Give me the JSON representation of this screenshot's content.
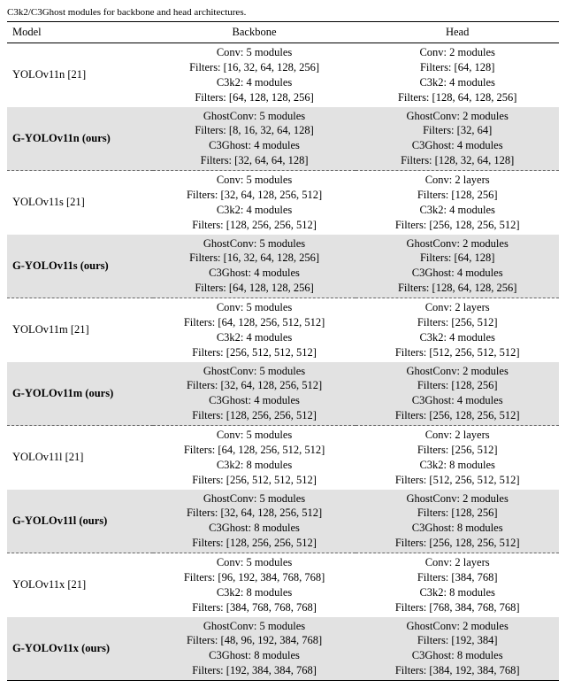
{
  "caption": "C3k2/C3Ghost modules for backbone and head architectures.",
  "headers": {
    "c0": "Model",
    "c1": "Backbone",
    "c2": "Head"
  },
  "rows": [
    {
      "model": "YOLOv11n [21]",
      "bold": false,
      "shaded": false,
      "sep": false,
      "backbone": [
        "Conv: 5 modules",
        "Filters: [16, 32, 64, 128, 256]",
        "C3k2: 4 modules",
        "Filters: [64, 128, 128, 256]"
      ],
      "head": [
        "Conv: 2 modules",
        "Filters: [64, 128]",
        "C3k2: 4 modules",
        "Filters: [128, 64, 128, 256]"
      ]
    },
    {
      "model": "G-YOLOv11n (ours)",
      "bold": true,
      "shaded": true,
      "sep": false,
      "backbone": [
        "GhostConv: 5 modules",
        "Filters: [8, 16, 32, 64, 128]",
        "C3Ghost: 4 modules",
        "Filters: [32, 64, 64, 128]"
      ],
      "head": [
        "GhostConv: 2 modules",
        "Filters: [32, 64]",
        "C3Ghost: 4 modules",
        "Filters: [128, 32, 64, 128]"
      ]
    },
    {
      "model": "YOLOv11s [21]",
      "bold": false,
      "shaded": false,
      "sep": true,
      "backbone": [
        "Conv: 5 modules",
        "Filters: [32, 64, 128, 256, 512]",
        "C3k2: 4 modules",
        "Filters: [128, 256, 256, 512]"
      ],
      "head": [
        "Conv: 2 layers",
        "Filters: [128, 256]",
        "C3k2: 4 modules",
        "Filters: [256, 128, 256, 512]"
      ]
    },
    {
      "model": "G-YOLOv11s (ours)",
      "bold": true,
      "shaded": true,
      "sep": false,
      "backbone": [
        "GhostConv: 5 modules",
        "Filters: [16, 32, 64, 128, 256]",
        "C3Ghost: 4 modules",
        "Filters: [64, 128, 128, 256]"
      ],
      "head": [
        "GhostConv: 2 modules",
        "Filters: [64, 128]",
        "C3Ghost: 4 modules",
        "Filters: [128, 64, 128, 256]"
      ]
    },
    {
      "model": "YOLOv11m [21]",
      "bold": false,
      "shaded": false,
      "sep": true,
      "backbone": [
        "Conv: 5 modules",
        "Filters: [64, 128, 256, 512, 512]",
        "C3k2: 4 modules",
        "Filters: [256, 512, 512, 512]"
      ],
      "head": [
        "Conv: 2 layers",
        "Filters: [256, 512]",
        "C3k2: 4 modules",
        "Filters: [512, 256, 512, 512]"
      ]
    },
    {
      "model": "G-YOLOv11m (ours)",
      "bold": true,
      "shaded": true,
      "sep": false,
      "backbone": [
        "GhostConv: 5 modules",
        "Filters: [32, 64, 128, 256, 512]",
        "C3Ghost: 4 modules",
        "Filters: [128, 256, 256, 512]"
      ],
      "head": [
        "GhostConv: 2 modules",
        "Filters: [128, 256]",
        "C3Ghost: 4 modules",
        "Filters: [256, 128, 256, 512]"
      ]
    },
    {
      "model": "YOLOv11l [21]",
      "bold": false,
      "shaded": false,
      "sep": true,
      "backbone": [
        "Conv: 5 modules",
        "Filters: [64, 128, 256, 512, 512]",
        "C3k2: 8 modules",
        "Filters: [256, 512, 512, 512]"
      ],
      "head": [
        "Conv: 2 layers",
        "Filters: [256, 512]",
        "C3k2: 8 modules",
        "Filters: [512, 256, 512, 512]"
      ]
    },
    {
      "model": "G-YOLOv11l (ours)",
      "bold": true,
      "shaded": true,
      "sep": false,
      "backbone": [
        "GhostConv: 5 modules",
        "Filters: [32, 64, 128, 256, 512]",
        "C3Ghost: 8 modules",
        "Filters: [128, 256, 256, 512]"
      ],
      "head": [
        "GhostConv: 2 modules",
        "Filters: [128, 256]",
        "C3Ghost: 8 modules",
        "Filters: [256, 128, 256, 512]"
      ]
    },
    {
      "model": "YOLOv11x [21]",
      "bold": false,
      "shaded": false,
      "sep": true,
      "backbone": [
        "Conv: 5 modules",
        "Filters: [96, 192, 384, 768, 768]",
        "C3k2: 8 modules",
        "Filters: [384, 768, 768, 768]"
      ],
      "head": [
        "Conv: 2 layers",
        "Filters: [384, 768]",
        "C3k2: 8 modules",
        "Filters: [768, 384, 768, 768]"
      ]
    },
    {
      "model": "G-YOLOv11x (ours)",
      "bold": true,
      "shaded": true,
      "sep": false,
      "backbone": [
        "GhostConv: 5 modules",
        "Filters: [48, 96, 192, 384, 768]",
        "C3Ghost: 8 modules",
        "Filters: [192, 384, 384, 768]"
      ],
      "head": [
        "GhostConv: 2 modules",
        "Filters: [192, 384]",
        "C3Ghost: 8 modules",
        "Filters: [384, 192, 384, 768]"
      ]
    }
  ]
}
